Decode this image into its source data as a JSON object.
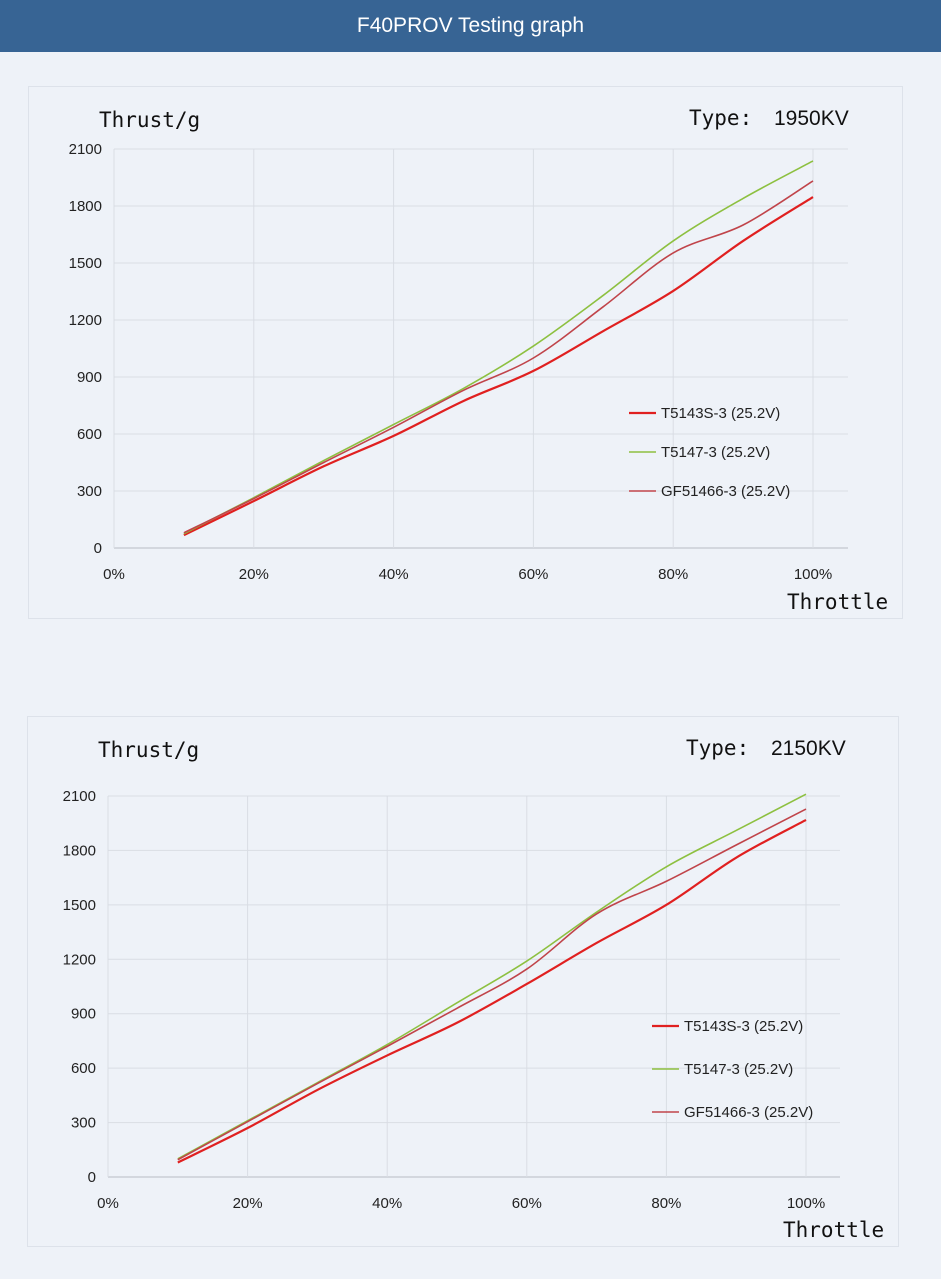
{
  "header": {
    "title": "F40PROV Testing graph"
  },
  "colors": {
    "header_bg": "#376494",
    "T5143S-3": "#e02020",
    "T5147-3": "#8dc040",
    "GF51466-3": "#c0444a"
  },
  "chart_data": [
    {
      "type": "line",
      "ylabel": "Thrust/g",
      "xlabel": "Throttle",
      "type_label": "Type:",
      "type_value": "1950KV",
      "x": [
        "10%",
        "20%",
        "30%",
        "40%",
        "50%",
        "60%",
        "70%",
        "80%",
        "90%",
        "100%"
      ],
      "x_ticks": [
        "0%",
        "20%",
        "40%",
        "60%",
        "80%",
        "100%"
      ],
      "y_ticks": [
        "0",
        "300",
        "600",
        "900",
        "1200",
        "1500",
        "1800",
        "2100"
      ],
      "ylim": [
        0,
        2100
      ],
      "xlim": [
        0,
        105
      ],
      "grid": true,
      "legend": "right",
      "series": [
        {
          "name": "T5143S-3 (25.2V)",
          "color": "#e02020",
          "values": [
            68,
            247,
            430,
            590,
            774,
            932,
            1142,
            1353,
            1616,
            1847
          ]
        },
        {
          "name": "T5147-3 (25.2V)",
          "color": "#8dc040",
          "values": [
            75,
            265,
            460,
            650,
            840,
            1063,
            1330,
            1616,
            1840,
            2037
          ]
        },
        {
          "name": "GF51466-3 (25.2V)",
          "color": "#c0444a",
          "values": [
            80,
            260,
            450,
            635,
            830,
            1000,
            1270,
            1553,
            1700,
            1932
          ]
        }
      ]
    },
    {
      "type": "line",
      "ylabel": "Thrust/g",
      "xlabel": "Throttle",
      "type_label": "Type:",
      "type_value": "2150KV",
      "x": [
        "10%",
        "20%",
        "30%",
        "40%",
        "50%",
        "60%",
        "70%",
        "80%",
        "90%",
        "100%"
      ],
      "x_ticks": [
        "0%",
        "20%",
        "40%",
        "60%",
        "80%",
        "100%"
      ],
      "y_ticks": [
        "0",
        "300",
        "600",
        "900",
        "1200",
        "1500",
        "1800",
        "2100"
      ],
      "ylim": [
        0,
        2100
      ],
      "xlim": [
        0,
        105
      ],
      "grid": true,
      "legend": "right",
      "series": [
        {
          "name": "T5143S-3 (25.2V)",
          "color": "#e02020",
          "values": [
            80,
            270,
            480,
            670,
            850,
            1064,
            1290,
            1500,
            1760,
            1968
          ]
        },
        {
          "name": "T5147-3 (25.2V)",
          "color": "#8dc040",
          "values": [
            100,
            310,
            520,
            730,
            960,
            1190,
            1460,
            1710,
            1910,
            2110
          ]
        },
        {
          "name": "GF51466-3 (25.2V)",
          "color": "#c0444a",
          "values": [
            95,
            305,
            515,
            720,
            930,
            1146,
            1450,
            1630,
            1830,
            2028
          ]
        }
      ]
    }
  ]
}
